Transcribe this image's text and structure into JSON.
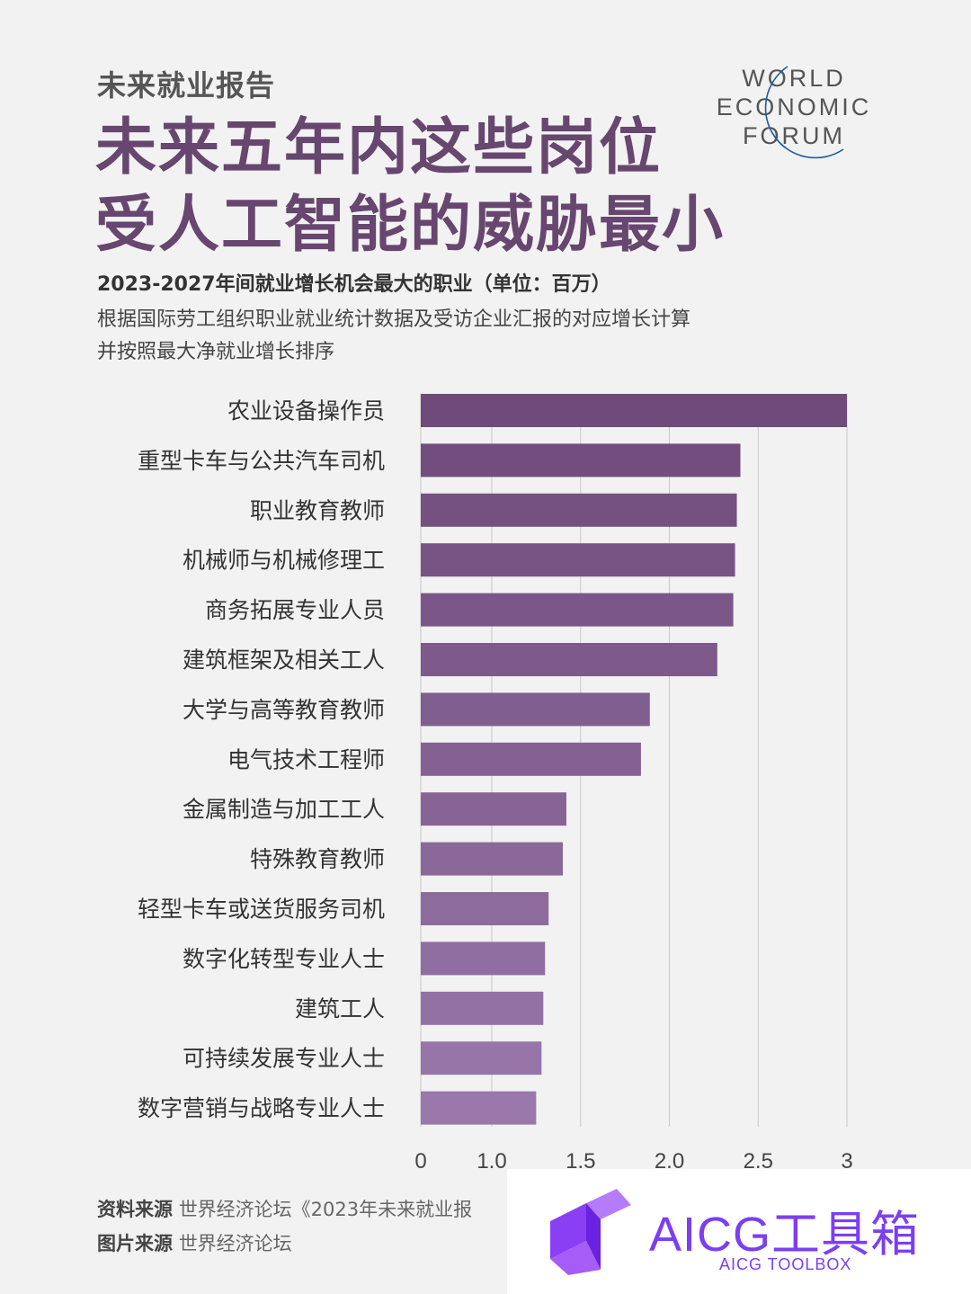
{
  "kicker": "未来就业报告",
  "title_lines": [
    "未来五年内这些岗位",
    "受人工智能的威胁最小"
  ],
  "logo": {
    "line1": "WORLD",
    "line2": "ECONOMIC",
    "line3": "FORUM"
  },
  "subtitle": "2023-2027年间就业增长机会最大的职业（单位：百万）",
  "desc_lines": [
    "根据国际劳工组织职业就业统计数据及受访企业汇报的对应增长计算",
    "并按照最大净就业增长排序"
  ],
  "colors": {
    "title": "#67466f",
    "bar_top": "#6f4a7b",
    "bar_bottom": "#9a78ab",
    "badge": "#7b3ff2"
  },
  "chart_data": {
    "type": "bar",
    "orientation": "horizontal",
    "title": "",
    "xlabel": "",
    "ylabel": "",
    "categories": [
      "农业设备操作员",
      "重型卡车与公共汽车司机",
      "职业教育教师",
      "机械师与机械修理工",
      "商务拓展专业人员",
      "建筑框架及相关工人",
      "大学与高等教育教师",
      "电气技术工程师",
      "金属制造与加工工人",
      "特殊教育教师",
      "轻型卡车或送货服务司机",
      "数字化转型专业人士",
      "建筑工人",
      "可持续发展专业人士",
      "数字营销与战略专业人士"
    ],
    "values": [
      3.0,
      2.4,
      2.38,
      2.37,
      2.36,
      2.27,
      1.89,
      1.84,
      1.42,
      1.4,
      1.32,
      1.3,
      1.29,
      1.28,
      1.25
    ],
    "xticks": [
      "0",
      "1.0",
      "1.5",
      "2.0",
      "2.5",
      "3"
    ],
    "axis_break": {
      "from": 0,
      "to": 0.6
    },
    "xlim": [
      0,
      3
    ],
    "grid": true
  },
  "source": {
    "label1": "资料来源",
    "text1": "世界经济论坛《2023年未来就业报",
    "label2": "图片来源",
    "text2": "世界经济论坛"
  },
  "watermark": {
    "title": "AICG工具箱",
    "subtitle": "AICG TOOLBOX"
  }
}
